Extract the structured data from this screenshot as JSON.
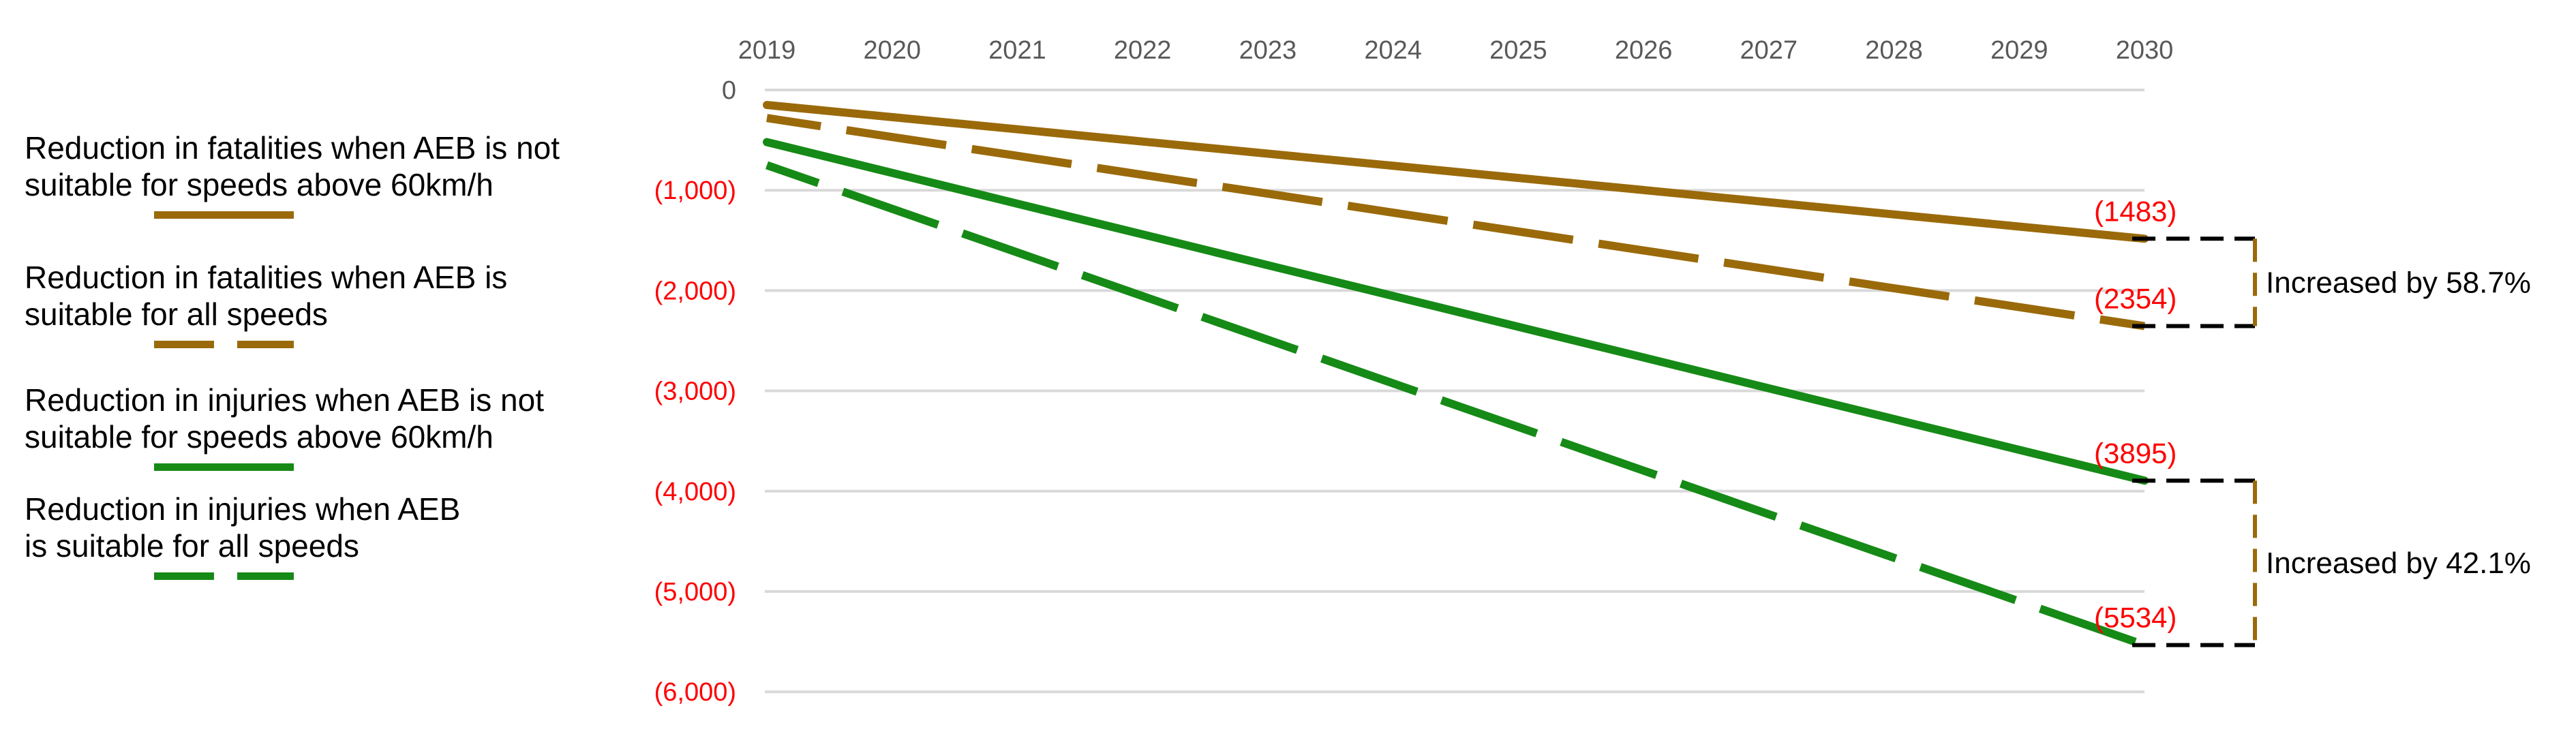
{
  "colors": {
    "fatalities_line": "#9A6A0A",
    "injuries_line": "#168A16",
    "data_label": "#FF0000",
    "axis_label": "#595959",
    "gridline": "#D9D9D9",
    "bracket_horizontal": "#000000",
    "bracket_vertical": "#9A6A0A",
    "annotation_text": "#000000"
  },
  "legend": {
    "items": [
      {
        "line1": "Reduction in fatalities when AEB is not",
        "line2": "suitable for speeds above 60km/h",
        "style": "solid",
        "color": "#9A6A0A"
      },
      {
        "line1": "Reduction in fatalities when AEB is",
        "line2": "suitable for all speeds",
        "style": "dashed",
        "color": "#9A6A0A"
      },
      {
        "line1": "Reduction in injuries when AEB is not",
        "line2": "suitable for speeds above 60km/h",
        "style": "solid",
        "color": "#168A16"
      },
      {
        "line1": "Reduction in injuries when AEB",
        "line2": "is suitable for all speeds",
        "style": "dashed",
        "color": "#168A16"
      }
    ]
  },
  "chart_data": {
    "type": "line",
    "x": [
      2019,
      2020,
      2021,
      2022,
      2023,
      2024,
      2025,
      2026,
      2027,
      2028,
      2029,
      2030
    ],
    "ylim": [
      -6000,
      0
    ],
    "ytick_values": [
      0,
      -1000,
      -2000,
      -3000,
      -4000,
      -5000,
      -6000
    ],
    "ytick_labels": [
      "0",
      "(1,000)",
      "(2,000)",
      "(3,000)",
      "(4,000)",
      "(5,000)",
      "(6,000)"
    ],
    "grid": true,
    "legend_position": "left",
    "series": [
      {
        "name": "Reduction in fatalities when AEB is not suitable for speeds above 60km/h",
        "style": "solid",
        "color": "#9A6A0A",
        "end_label": "(1483)",
        "values": [
          -150,
          -271,
          -392,
          -514,
          -635,
          -756,
          -877,
          -998,
          -1119,
          -1241,
          -1362,
          -1483
        ]
      },
      {
        "name": "Reduction in fatalities when AEB is suitable for all speeds",
        "style": "dashed",
        "color": "#9A6A0A",
        "end_label": "(2354)",
        "values": [
          -280,
          -469,
          -657,
          -846,
          -1034,
          -1223,
          -1411,
          -1600,
          -1788,
          -1977,
          -2165,
          -2354
        ]
      },
      {
        "name": "Reduction in injuries when AEB is not suitable for speeds above 60km/h",
        "style": "solid",
        "color": "#168A16",
        "end_label": "(3895)",
        "values": [
          -520,
          -827,
          -1134,
          -1440,
          -1747,
          -2054,
          -2361,
          -2667,
          -2974,
          -3281,
          -3588,
          -3895
        ]
      },
      {
        "name": "Reduction in injuries when AEB is suitable for all speeds",
        "style": "dashed",
        "color": "#168A16",
        "end_label": "(5534)",
        "values": [
          -750,
          -1185,
          -1620,
          -2055,
          -2490,
          -2925,
          -3360,
          -3795,
          -4230,
          -4664,
          -5099,
          -5534
        ]
      }
    ],
    "annotations": [
      {
        "text": "Increased by 58.7%",
        "from_series": 0,
        "to_series": 1
      },
      {
        "text": "Increased by 42.1%",
        "from_series": 2,
        "to_series": 3
      }
    ]
  }
}
